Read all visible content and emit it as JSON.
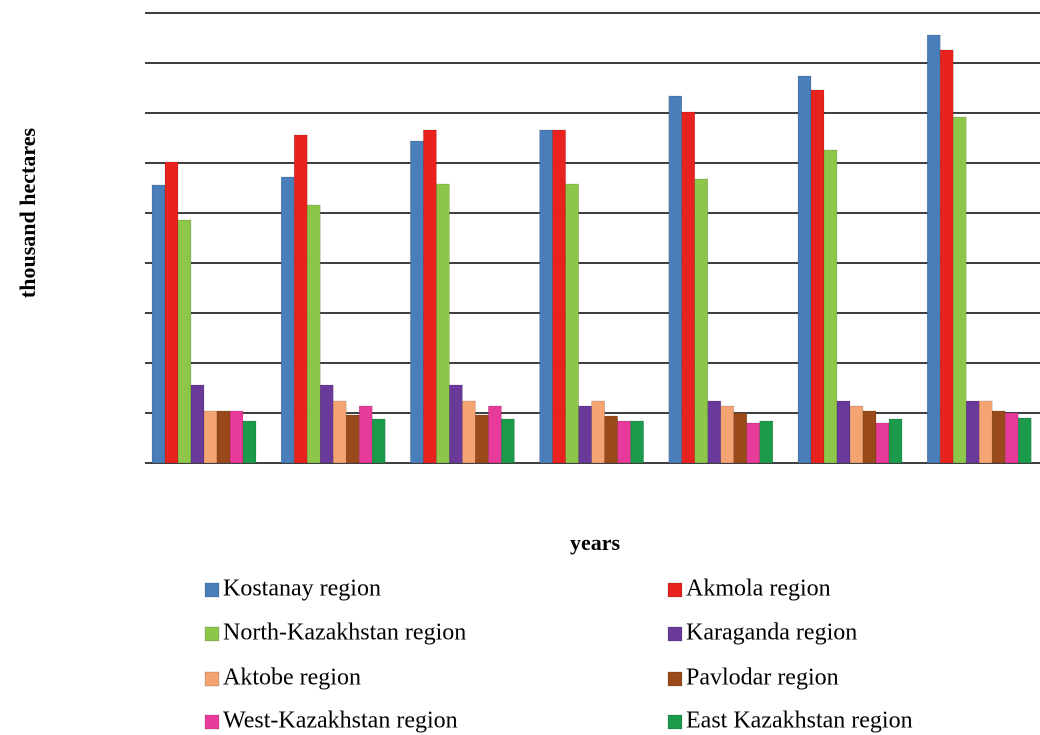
{
  "chart_data": {
    "type": "bar",
    "y_label": "thousand hectares",
    "x_label": "years",
    "categories": [
      null,
      null,
      null,
      null,
      null,
      null,
      null
    ],
    "ylim": [
      0,
      9
    ],
    "yticks": [
      0,
      1,
      2,
      3,
      4,
      5,
      6,
      7,
      8,
      9
    ],
    "grid": true,
    "legend": "bottom",
    "series": [
      {
        "name": "Kostanay region",
        "color": "#4a7ebb",
        "values": [
          5.56,
          5.72,
          6.44,
          6.66,
          7.34,
          7.74,
          8.56
        ]
      },
      {
        "name": "Akmola region",
        "color": "#e8231f",
        "values": [
          6.02,
          6.56,
          6.66,
          6.66,
          7.02,
          7.46,
          8.26
        ]
      },
      {
        "name": "North-Kazakhstan region",
        "color": "#8ec64a",
        "values": [
          4.86,
          5.16,
          5.58,
          5.58,
          5.68,
          6.26,
          6.92
        ]
      },
      {
        "name": "Karaganda region",
        "color": "#6a3a9a",
        "values": [
          1.56,
          1.56,
          1.56,
          1.14,
          1.24,
          1.24,
          1.24
        ]
      },
      {
        "name": "Aktobe region",
        "color": "#f4a373",
        "values": [
          1.04,
          1.24,
          1.24,
          1.24,
          1.14,
          1.14,
          1.24
        ]
      },
      {
        "name": "Pavlodar region",
        "color": "#9a4a1a",
        "values": [
          1.04,
          0.96,
          0.96,
          0.94,
          1.0,
          1.04,
          1.04
        ]
      },
      {
        "name": "West-Kazakhstan region",
        "color": "#e83a9a",
        "values": [
          1.04,
          1.14,
          1.14,
          0.84,
          0.8,
          0.8,
          1.0
        ]
      },
      {
        "name": "East Kazakhstan region",
        "color": "#1a9a4a",
        "values": [
          0.84,
          0.88,
          0.88,
          0.84,
          0.84,
          0.88,
          0.9
        ]
      }
    ]
  }
}
